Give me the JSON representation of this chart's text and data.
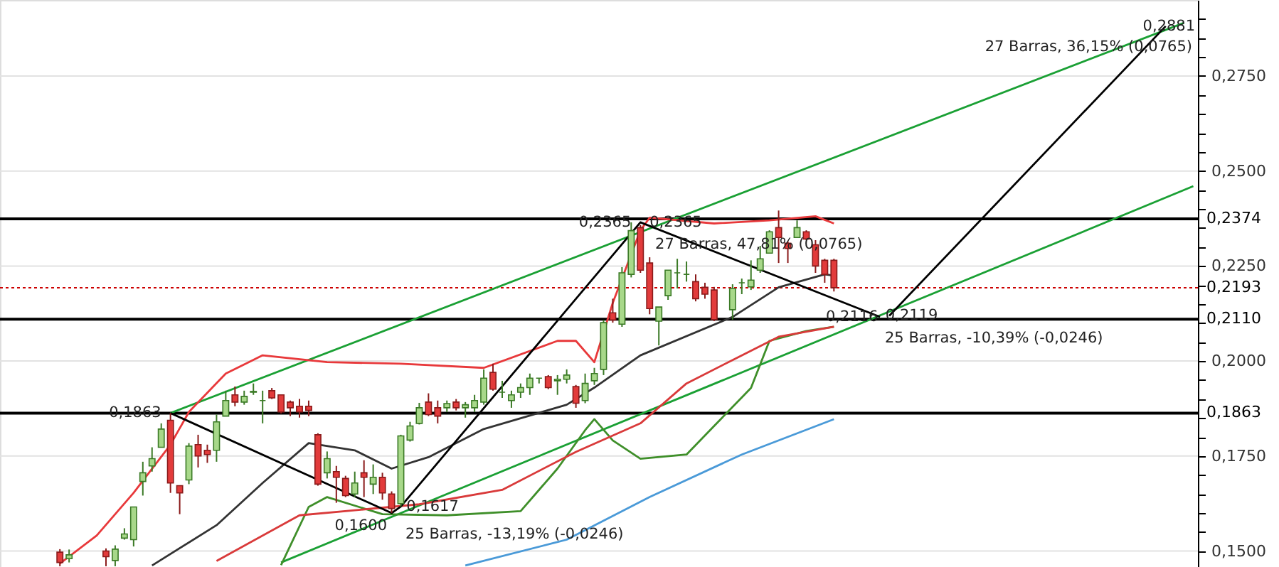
{
  "chart_data": {
    "type": "candlestick",
    "tick_labels": "y",
    "grid": "y",
    "categories": [
      null,
      null,
      null,
      null,
      null,
      null,
      null,
      null,
      null,
      null,
      null,
      null,
      null,
      null,
      null,
      null,
      null,
      null,
      null,
      null,
      null,
      null,
      null,
      null,
      null,
      null,
      null,
      null,
      null,
      null,
      null,
      null,
      null,
      null,
      null,
      null,
      null,
      null,
      null,
      null,
      null,
      null,
      null,
      null,
      null,
      null,
      null,
      null,
      null,
      null,
      null,
      null,
      null,
      null,
      null,
      null,
      null,
      null,
      null,
      null,
      null,
      null,
      null,
      null,
      null,
      null,
      null,
      null,
      null,
      null,
      null,
      null,
      null,
      null,
      null,
      null,
      null,
      null,
      null,
      null,
      null,
      null,
      null,
      null,
      null,
      null,
      null,
      null,
      null,
      null,
      null,
      null,
      null,
      null,
      null,
      null,
      null,
      null,
      null,
      null,
      null,
      null,
      null,
      null,
      null,
      null,
      null,
      null,
      null,
      null,
      null,
      null,
      null,
      null,
      null,
      null,
      null,
      null,
      null,
      null,
      null,
      null,
      null,
      null,
      null,
      null,
      null,
      null,
      null,
      null
    ],
    "ohlc": [
      null,
      null,
      null,
      null,
      null,
      null,
      [
        0.1497,
        0.1505,
        0.146,
        0.147
      ],
      [
        0.148,
        0.1504,
        0.147,
        0.149
      ],
      null,
      null,
      null,
      [
        0.15,
        0.1507,
        0.146,
        0.1485
      ],
      [
        0.1475,
        0.1515,
        0.146,
        0.1505
      ],
      [
        0.1534,
        0.156,
        0.153,
        0.1545
      ],
      [
        0.153,
        0.1616,
        0.1512,
        0.1616
      ],
      [
        0.1683,
        0.1735,
        0.1646,
        0.1706
      ],
      [
        0.1724,
        0.1773,
        0.1709,
        0.1743
      ],
      [
        0.1773,
        0.1836,
        0.1773,
        0.1821
      ],
      [
        0.1844,
        0.1863,
        0.1653,
        0.1679
      ],
      [
        0.1672,
        0.1672,
        0.1597,
        0.1653
      ],
      [
        0.1687,
        0.1784,
        0.1676,
        0.1776
      ],
      [
        0.178,
        0.1806,
        0.172,
        0.175
      ],
      [
        0.1765,
        0.178,
        0.1732,
        0.1754
      ],
      [
        0.1765,
        0.1859,
        0.1735,
        0.184
      ],
      [
        0.1855,
        0.1922,
        0.1855,
        0.1896
      ],
      [
        0.1911,
        0.1933,
        0.1881,
        0.1892
      ],
      [
        0.1892,
        0.1922,
        0.1885,
        0.1907
      ],
      [
        0.1918,
        0.1941,
        0.1911,
        0.192
      ],
      [
        0.1896,
        0.1922,
        0.1836,
        0.1896
      ],
      [
        0.1922,
        0.1929,
        0.19,
        0.1903
      ],
      [
        0.1911,
        0.1911,
        0.1862,
        0.1866
      ],
      [
        0.1892,
        0.1896,
        0.1855,
        0.1877
      ],
      [
        0.1881,
        0.19,
        0.1851,
        0.1866
      ],
      [
        0.1881,
        0.1896,
        0.1855,
        0.187
      ],
      [
        0.1806,
        0.181,
        0.1672,
        0.1676
      ],
      [
        0.1706,
        0.1762,
        0.1691,
        0.1743
      ],
      [
        0.1709,
        0.1724,
        0.1627,
        0.1694
      ],
      [
        0.1691,
        0.1698,
        0.1642,
        0.1646
      ],
      [
        0.165,
        0.1709,
        0.1642,
        0.1679
      ],
      [
        0.1706,
        0.1739,
        0.1642,
        0.1694
      ],
      [
        0.1676,
        0.1728,
        0.165,
        0.1694
      ],
      [
        0.1694,
        0.1706,
        0.1635,
        0.1653
      ],
      [
        0.165,
        0.1657,
        0.16,
        0.1612
      ],
      [
        0.1625,
        0.1806,
        0.1617,
        0.1803
      ],
      [
        0.1792,
        0.184,
        0.1788,
        0.1829
      ],
      [
        0.1836,
        0.189,
        0.1833,
        0.1877
      ],
      [
        0.1892,
        0.1915,
        0.1855,
        0.1859
      ],
      [
        0.1877,
        0.1896,
        0.1836,
        0.1855
      ],
      [
        0.1877,
        0.1896,
        0.1866,
        0.1888
      ],
      [
        0.1892,
        0.19,
        0.187,
        0.1877
      ],
      [
        0.1877,
        0.1892,
        0.1851,
        0.1885
      ],
      [
        0.1877,
        0.1911,
        0.1866,
        0.1896
      ],
      [
        0.1892,
        0.1978,
        0.1885,
        0.1955
      ],
      [
        0.197,
        0.1993,
        0.1922,
        0.1926
      ],
      [
        0.1918,
        0.1948,
        0.1903,
        0.1918
      ],
      [
        0.1896,
        0.1922,
        0.1877,
        0.1911
      ],
      [
        0.1918,
        0.1941,
        0.1903,
        0.193
      ],
      [
        0.193,
        0.1967,
        0.1911,
        0.1955
      ],
      [
        0.1955,
        0.1955,
        0.1941,
        0.1955
      ],
      [
        0.1959,
        0.1963,
        0.1926,
        0.193
      ],
      [
        0.1948,
        0.1963,
        0.1911,
        0.1952
      ],
      [
        0.1952,
        0.1978,
        0.1941,
        0.1963
      ],
      [
        0.1933,
        0.1937,
        0.1877,
        0.1889
      ],
      [
        0.1896,
        0.1967,
        0.1889,
        0.1941
      ],
      [
        0.1948,
        0.1982,
        0.1937,
        0.1967
      ],
      [
        0.1978,
        0.2108,
        0.1963,
        0.2101
      ],
      [
        0.2127,
        0.2164,
        0.2101,
        0.2108
      ],
      [
        0.2097,
        0.2247,
        0.209,
        0.2232
      ],
      [
        0.2228,
        0.2365,
        0.222,
        0.2343
      ],
      [
        0.2351,
        0.2358,
        0.2232,
        0.2239
      ],
      [
        0.2258,
        0.2273,
        0.2123,
        0.2138
      ],
      [
        0.2105,
        0.2142,
        0.2041,
        0.2142
      ],
      [
        0.2172,
        0.2239,
        0.2161,
        0.2239
      ],
      [
        0.2232,
        0.2269,
        0.2191,
        0.2232
      ],
      [
        0.2228,
        0.2262,
        0.2209,
        0.2228
      ],
      [
        0.2209,
        0.2228,
        0.2157,
        0.2164
      ],
      [
        0.2194,
        0.2206,
        0.2164,
        0.2176
      ],
      [
        0.2187,
        0.2195,
        0.2105,
        0.2109
      ],
      null,
      [
        0.2135,
        0.2202,
        0.2109,
        0.2191
      ],
      [
        0.2206,
        0.2217,
        0.2176,
        0.2206
      ],
      [
        0.2195,
        0.2265,
        0.2187,
        0.2213
      ],
      [
        0.2239,
        0.2303,
        0.2232,
        0.2269
      ],
      [
        0.2284,
        0.2344,
        0.2284,
        0.234
      ],
      [
        0.2351,
        0.2396,
        0.2258,
        0.2325
      ],
      [
        0.231,
        0.2315,
        0.2258,
        0.2296
      ],
      [
        0.2325,
        0.237,
        0.2325,
        0.2351
      ],
      [
        0.234,
        0.2344,
        0.2318,
        0.2321
      ],
      [
        0.2306,
        0.2318,
        0.2232,
        0.225
      ],
      [
        0.2265,
        0.2269,
        0.2206,
        0.2228
      ],
      [
        0.2265,
        0.2269,
        0.2183,
        0.2193
      ],
      null,
      null,
      null,
      null,
      null,
      null,
      null,
      null,
      null,
      null,
      null,
      null,
      null,
      null,
      null,
      null,
      null,
      null,
      null,
      null,
      null,
      null,
      null,
      null,
      null,
      null,
      null,
      null,
      null,
      null,
      null,
      null,
      null,
      null,
      null,
      null,
      null,
      null,
      null
    ],
    "series": [
      {
        "type": "line",
        "color": "#1aa034",
        "values": [
          null,
          null,
          null,
          null,
          null,
          null,
          null,
          null,
          null,
          null,
          null,
          null,
          null,
          null,
          null,
          null,
          null,
          null,
          0.1863,
          null,
          null,
          null,
          null,
          null,
          null,
          null,
          null,
          null,
          null,
          null,
          null,
          null,
          null,
          null,
          null,
          null,
          null,
          null,
          null,
          null,
          null,
          null,
          null,
          null,
          null,
          null,
          null,
          null,
          null,
          null,
          null,
          null,
          null,
          null,
          null,
          null,
          null,
          null,
          null,
          null,
          null,
          null,
          null,
          null,
          null,
          null,
          null,
          null,
          null,
          null,
          null,
          null,
          null,
          null,
          null,
          null,
          null,
          null,
          null,
          null,
          null,
          null,
          null,
          null,
          null,
          null,
          null,
          null,
          null,
          null,
          null,
          null,
          null,
          null,
          null,
          null,
          null,
          null,
          null,
          null,
          null,
          null,
          null,
          null,
          null,
          null,
          null,
          null,
          null,
          null,
          null,
          null,
          null,
          null,
          null,
          null,
          null,
          null,
          null,
          null,
          null,
          null,
          null,
          null,
          null,
          null,
          null,
          null,
          0.289,
          null
        ]
      },
      {
        "type": "line",
        "color": "#1aa034",
        "values": [
          null,
          null,
          null,
          null,
          null,
          null,
          null,
          null,
          null,
          null,
          null,
          null,
          null,
          null,
          null,
          null,
          null,
          null,
          null,
          null,
          null,
          null,
          null,
          null,
          null,
          null,
          null,
          null,
          null,
          null,
          0.147,
          null,
          null,
          null,
          null,
          null,
          null,
          null,
          null,
          null,
          null,
          null,
          null,
          null,
          null,
          null,
          null,
          null,
          null,
          null,
          null,
          null,
          null,
          null,
          null,
          null,
          null,
          null,
          null,
          null,
          null,
          null,
          null,
          null,
          null,
          null,
          null,
          null,
          null,
          null,
          null,
          null,
          null,
          null,
          null,
          null,
          null,
          null,
          null,
          null,
          null,
          null,
          null,
          null,
          null,
          null,
          null,
          null,
          null,
          null,
          null,
          null,
          null,
          null,
          null,
          null,
          null,
          null,
          null,
          null,
          null,
          null,
          null,
          null,
          null,
          null,
          null,
          null,
          null,
          null,
          null,
          null,
          null,
          null,
          null,
          null,
          null,
          null,
          null,
          null,
          null,
          null,
          null,
          null,
          null,
          null,
          null,
          null,
          null,
          0.246
        ]
      },
      {
        "type": "line",
        "color": "#e8393b",
        "values": [
          null,
          null,
          null,
          null,
          null,
          null,
          0.1467,
          null,
          null,
          null,
          0.1541,
          null,
          null,
          null,
          0.1653,
          null,
          null,
          null,
          0.178,
          null,
          0.1866,
          null,
          null,
          null,
          0.1967,
          null,
          null,
          null,
          0.2015,
          null,
          null,
          null,
          null,
          null,
          null,
          0.1997,
          null,
          null,
          null,
          null,
          null,
          null,
          null,
          0.1993,
          null,
          null,
          null,
          null,
          null,
          null,
          null,
          null,
          0.1982,
          null,
          null,
          null,
          null,
          null,
          null,
          null,
          0.2053,
          null,
          0.2053,
          null,
          0.1997,
          null,
          0.2153,
          null,
          null,
          0.2344,
          0.2377,
          null,
          null,
          null,
          null,
          null,
          null,
          0.2362,
          null,
          null,
          null,
          null,
          null,
          0.237,
          null,
          null,
          null,
          null,
          0.2381,
          null,
          0.2362,
          null,
          null,
          null,
          null,
          null,
          null,
          null,
          null,
          null,
          null,
          null,
          null,
          null,
          null,
          null,
          null,
          null,
          null,
          null,
          null,
          null,
          null,
          null,
          null,
          null,
          null,
          null,
          null,
          null,
          null,
          null,
          null,
          null,
          null,
          null,
          null,
          null,
          null,
          null
        ]
      },
      {
        "type": "line",
        "color": "#333333",
        "values": [
          null,
          null,
          null,
          null,
          null,
          null,
          null,
          null,
          null,
          null,
          null,
          null,
          null,
          null,
          null,
          null,
          0.1462,
          null,
          null,
          null,
          null,
          null,
          null,
          0.1568,
          null,
          null,
          null,
          null,
          0.1679,
          null,
          null,
          null,
          null,
          0.1784,
          null,
          null,
          null,
          null,
          0.1765,
          null,
          null,
          null,
          0.1717,
          null,
          null,
          null,
          0.1747,
          null,
          null,
          null,
          null,
          null,
          0.1821,
          null,
          null,
          null,
          null,
          null,
          null,
          null,
          null,
          0.1885,
          null,
          null,
          0.193,
          null,
          null,
          null,
          null,
          0.2015,
          null,
          null,
          null,
          null,
          null,
          null,
          null,
          null,
          null,
          0.2116,
          null,
          null,
          null,
          null,
          0.2194,
          null,
          null,
          null,
          null,
          0.2228,
          0.2225,
          null,
          null,
          null,
          null,
          null,
          null,
          null,
          null,
          null,
          null,
          null,
          null,
          null,
          null,
          null,
          null,
          null,
          null,
          null,
          null,
          null,
          null,
          null,
          null,
          null,
          null,
          null,
          null,
          null,
          null,
          null,
          null,
          null,
          null,
          null,
          null,
          null,
          null,
          null
        ]
      },
      {
        "type": "line",
        "color": "#3f8f2a",
        "values": [
          null,
          null,
          null,
          null,
          null,
          null,
          null,
          null,
          null,
          null,
          null,
          null,
          null,
          null,
          null,
          null,
          null,
          null,
          null,
          null,
          null,
          null,
          null,
          null,
          null,
          null,
          null,
          null,
          null,
          null,
          0.1463,
          null,
          null,
          0.1616,
          null,
          0.1642,
          null,
          null,
          null,
          null,
          null,
          0.1597,
          null,
          null,
          null,
          null,
          null,
          null,
          0.1594,
          null,
          null,
          null,
          null,
          null,
          null,
          null,
          0.1605,
          null,
          null,
          null,
          0.1717,
          null,
          null,
          0.1818,
          0.1847,
          null,
          0.1791,
          null,
          null,
          0.1743,
          null,
          null,
          null,
          null,
          0.1754,
          null,
          null,
          0.1829,
          null,
          null,
          null,
          0.1929,
          null,
          0.2053,
          null,
          null,
          null,
          0.2079,
          null,
          null,
          0.209,
          null,
          null,
          null,
          null,
          null,
          null,
          null,
          null,
          null,
          null,
          null,
          null,
          null,
          null,
          null,
          null,
          null,
          null,
          null,
          null,
          null,
          null,
          null,
          null,
          null,
          null,
          null,
          null,
          null,
          null,
          null,
          null,
          null,
          null,
          null,
          null,
          null,
          null,
          null
        ]
      },
      {
        "type": "line",
        "color": "#d93a3a",
        "values": [
          null,
          null,
          null,
          null,
          null,
          null,
          null,
          null,
          null,
          null,
          null,
          null,
          null,
          null,
          null,
          null,
          null,
          null,
          null,
          null,
          null,
          null,
          null,
          0.1474,
          null,
          null,
          null,
          null,
          null,
          null,
          null,
          null,
          0.1594,
          null,
          null,
          null,
          null,
          null,
          null,
          null,
          null,
          null,
          null,
          null,
          null,
          0.1623,
          null,
          null,
          null,
          null,
          null,
          null,
          null,
          null,
          0.1661,
          null,
          null,
          null,
          null,
          null,
          null,
          null,
          0.1761,
          null,
          null,
          null,
          null,
          null,
          null,
          0.1836,
          null,
          null,
          null,
          null,
          0.1941,
          null,
          null,
          null,
          null,
          null,
          null,
          null,
          null,
          null,
          0.2064,
          null,
          null,
          null,
          null,
          null,
          0.209,
          null,
          null,
          null,
          null,
          null,
          null,
          null,
          null,
          null,
          null,
          null,
          null,
          null,
          null,
          null,
          null,
          null,
          null,
          null,
          null,
          null,
          null,
          null,
          null,
          null,
          null,
          null,
          null,
          null,
          null,
          null,
          null,
          null,
          null,
          null,
          null,
          null,
          null,
          null
        ]
      },
      {
        "type": "line",
        "color": "#4a9ad8",
        "values": [
          null,
          null,
          null,
          null,
          null,
          null,
          null,
          null,
          null,
          null,
          null,
          null,
          null,
          null,
          null,
          null,
          null,
          null,
          null,
          null,
          null,
          null,
          null,
          null,
          null,
          null,
          null,
          null,
          null,
          null,
          null,
          null,
          null,
          null,
          null,
          null,
          null,
          null,
          null,
          null,
          null,
          null,
          null,
          null,
          null,
          null,
          null,
          null,
          null,
          null,
          0.1462,
          null,
          null,
          null,
          null,
          null,
          null,
          null,
          null,
          null,
          null,
          0.153,
          null,
          null,
          null,
          null,
          null,
          null,
          null,
          null,
          0.1642,
          null,
          null,
          null,
          null,
          null,
          null,
          null,
          null,
          null,
          0.1754,
          null,
          null,
          null,
          null,
          null,
          null,
          null,
          null,
          null,
          0.1847,
          null,
          null,
          null,
          null,
          null,
          null,
          null,
          null,
          null,
          null,
          null,
          null,
          null,
          null,
          null,
          null,
          null,
          null,
          null,
          null,
          null,
          null,
          null,
          null,
          null,
          null,
          null,
          null,
          null,
          null,
          null,
          null,
          null,
          null,
          null,
          null,
          null,
          null,
          null
        ]
      },
      {
        "type": "line",
        "color": "#000000",
        "values": [
          null,
          null,
          null,
          null,
          null,
          null,
          null,
          null,
          null,
          null,
          null,
          null,
          null,
          null,
          null,
          null,
          null,
          null,
          0.1863,
          null,
          null,
          null,
          null,
          null,
          null,
          null,
          null,
          null,
          null,
          null,
          null,
          null,
          null,
          null,
          null,
          null,
          null,
          null,
          null,
          null,
          null,
          null,
          0.16,
          0.1617,
          null,
          null,
          null,
          null,
          null,
          null,
          null,
          null,
          null,
          null,
          null,
          null,
          null,
          null,
          null,
          null,
          null,
          null,
          null,
          null,
          null,
          null,
          null,
          null,
          null,
          0.2365,
          null,
          null,
          null,
          null,
          null,
          null,
          null,
          null,
          null,
          null,
          null,
          null,
          null,
          null,
          null,
          null,
          null,
          null,
          null,
          null,
          null,
          null,
          null,
          null,
          null,
          0.2116,
          null,
          null,
          null,
          null,
          null,
          null,
          null,
          null,
          null,
          null,
          null,
          null,
          null,
          null,
          null,
          null,
          null,
          null,
          null,
          null,
          null,
          null,
          null,
          null,
          null,
          null,
          null,
          null,
          null,
          null,
          null,
          null,
          null,
          null
        ]
      },
      {
        "type": "line",
        "color": "#000000",
        "values": [
          null,
          null,
          null,
          null,
          null,
          null,
          null,
          null,
          null,
          null,
          null,
          null,
          null,
          null,
          null,
          null,
          null,
          null,
          null,
          null,
          null,
          null,
          null,
          null,
          null,
          null,
          null,
          null,
          null,
          null,
          null,
          null,
          null,
          null,
          null,
          null,
          null,
          null,
          null,
          null,
          null,
          null,
          null,
          null,
          null,
          null,
          null,
          null,
          null,
          null,
          null,
          null,
          null,
          null,
          null,
          null,
          null,
          null,
          null,
          null,
          null,
          null,
          null,
          null,
          null,
          null,
          null,
          null,
          null,
          null,
          null,
          null,
          null,
          null,
          null,
          null,
          null,
          null,
          null,
          null,
          null,
          null,
          null,
          null,
          null,
          null,
          null,
          null,
          null,
          null,
          null,
          null,
          null,
          null,
          null,
          null,
          0.2119,
          null,
          null,
          null,
          null,
          null,
          null,
          null,
          null,
          null,
          null,
          null,
          null,
          null,
          null,
          null,
          null,
          null,
          null,
          null,
          null,
          null,
          null,
          null,
          null,
          null,
          null,
          null,
          null,
          null,
          0.2881,
          null,
          null,
          null
        ]
      }
    ],
    "ylim": [
      0.1458,
      0.295
    ],
    "yticks": [
      {
        "value": 0.15,
        "label": "0,1500"
      },
      {
        "value": 0.155,
        "label": null
      },
      {
        "value": 0.16,
        "label": null
      },
      {
        "value": 0.165,
        "label": null
      },
      {
        "value": 0.17,
        "label": null
      },
      {
        "value": 0.175,
        "label": "0,1750"
      },
      {
        "value": 0.18,
        "label": null
      },
      {
        "value": 0.185,
        "label": null
      },
      {
        "value": 0.19,
        "label": null
      },
      {
        "value": 0.195,
        "label": null
      },
      {
        "value": 0.2,
        "label": "0,2000"
      },
      {
        "value": 0.205,
        "label": null
      },
      {
        "value": 0.21,
        "label": null
      },
      {
        "value": 0.215,
        "label": null
      },
      {
        "value": 0.22,
        "label": null
      },
      {
        "value": 0.225,
        "label": "0,2250"
      },
      {
        "value": 0.23,
        "label": null
      },
      {
        "value": 0.235,
        "label": null
      },
      {
        "value": 0.24,
        "label": null
      },
      {
        "value": 0.245,
        "label": null
      },
      {
        "value": 0.25,
        "label": "0,2500"
      },
      {
        "value": 0.255,
        "label": null
      },
      {
        "value": 0.26,
        "label": null
      },
      {
        "value": 0.265,
        "label": null
      },
      {
        "value": 0.27,
        "label": null
      },
      {
        "value": 0.275,
        "label": "0,2750"
      },
      {
        "value": 0.28,
        "label": null
      },
      {
        "value": 0.285,
        "label": null
      },
      {
        "value": 0.29,
        "label": null
      }
    ],
    "ref_lines": [
      {
        "axis": "y",
        "value": 0.2374,
        "label": "0,2374",
        "color": "#000000",
        "line_style": "solid"
      },
      {
        "axis": "y",
        "value": 0.2193,
        "label": "0,2193",
        "color": "#cc0000",
        "line_style": "dotted"
      },
      {
        "axis": "y",
        "value": 0.211,
        "label": "0,2110",
        "color": "#000000",
        "line_style": "solid"
      },
      {
        "axis": "y",
        "value": 0.1863,
        "label": "0,1863",
        "color": "#000000",
        "line_style": "solid"
      }
    ],
    "annotations": [
      {
        "text": "0,1863",
        "y": 0.1863
      },
      {
        "text": "0,1600",
        "y": 0.16
      },
      {
        "text": "0,1617",
        "y": 0.1617
      },
      "25 Barras, -13,19% (-0,0246)",
      {
        "text": "0,2365",
        "y": 0.2365
      },
      {
        "text": "0,2365",
        "y": 0.2365
      },
      {
        "text": "27 Barras, 47,81% (0,0765)",
        "y": 0.2306
      },
      {
        "text": "0,2116",
        "y": 0.2116
      },
      {
        "text": "0,2119",
        "y": 0.2119
      },
      "25 Barras, -10,39% (-0,0246)",
      "27 Barras, 36,15% (0,0765)",
      {
        "text": "0,2881",
        "y": 0.2881
      }
    ]
  }
}
